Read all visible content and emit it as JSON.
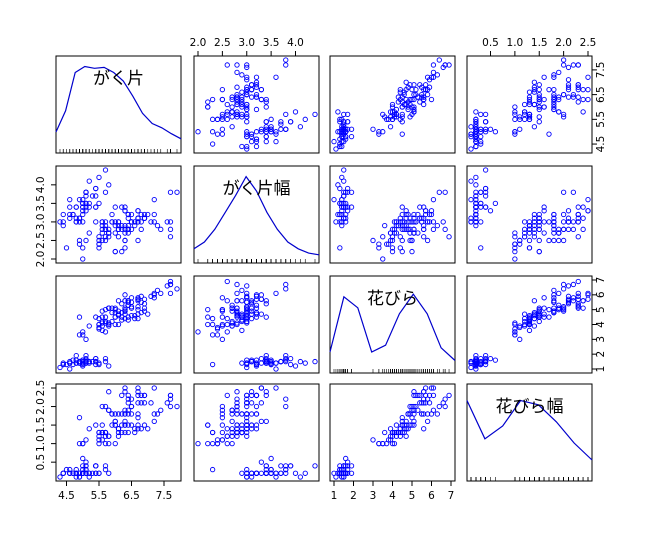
{
  "chart_data": {
    "type": "scatter",
    "variables": [
      "がく片",
      "がく片幅",
      "花びら",
      "花びら幅"
    ],
    "ranges": [
      [
        4.3,
        7.9
      ],
      [
        2.0,
        4.4
      ],
      [
        1.0,
        7.0
      ],
      [
        0.1,
        2.5
      ]
    ],
    "ticks": [
      [
        "4.5",
        "5.5",
        "6.5",
        "7.5"
      ],
      [
        "2.0",
        "2.5",
        "3.0",
        "3.5",
        "4.0"
      ],
      [
        "1",
        "2",
        "3",
        "4",
        "5",
        "6",
        "7"
      ],
      [
        "0.5",
        "1.0",
        "1.5",
        "2.0",
        "2.5"
      ]
    ],
    "density_curves": [
      [
        0.2,
        0.45,
        0.9,
        0.97,
        0.95,
        0.96,
        0.9,
        0.8,
        0.62,
        0.42,
        0.3,
        0.25,
        0.18,
        0.12
      ],
      [
        0.12,
        0.2,
        0.35,
        0.55,
        0.75,
        0.97,
        0.8,
        0.55,
        0.35,
        0.2,
        0.12,
        0.07,
        0.05
      ],
      [
        0.2,
        0.85,
        0.72,
        0.2,
        0.28,
        0.65,
        0.88,
        0.65,
        0.25,
        0.1
      ],
      [
        0.9,
        0.45,
        0.6,
        0.9,
        0.85,
        0.65,
        0.4,
        0.2
      ]
    ],
    "observations": [
      [
        5.1,
        3.5,
        1.4,
        0.2
      ],
      [
        4.9,
        3.0,
        1.4,
        0.2
      ],
      [
        4.7,
        3.2,
        1.3,
        0.2
      ],
      [
        4.6,
        3.1,
        1.5,
        0.2
      ],
      [
        5.0,
        3.6,
        1.4,
        0.2
      ],
      [
        5.4,
        3.9,
        1.7,
        0.4
      ],
      [
        4.6,
        3.4,
        1.4,
        0.3
      ],
      [
        5.0,
        3.4,
        1.5,
        0.2
      ],
      [
        4.4,
        2.9,
        1.4,
        0.2
      ],
      [
        4.9,
        3.1,
        1.5,
        0.1
      ],
      [
        5.4,
        3.7,
        1.5,
        0.2
      ],
      [
        4.8,
        3.4,
        1.6,
        0.2
      ],
      [
        4.8,
        3.0,
        1.4,
        0.1
      ],
      [
        4.3,
        3.0,
        1.1,
        0.1
      ],
      [
        5.8,
        4.0,
        1.2,
        0.2
      ],
      [
        5.7,
        4.4,
        1.5,
        0.4
      ],
      [
        5.4,
        3.9,
        1.3,
        0.4
      ],
      [
        5.1,
        3.5,
        1.4,
        0.3
      ],
      [
        5.7,
        3.8,
        1.7,
        0.3
      ],
      [
        5.1,
        3.8,
        1.5,
        0.3
      ],
      [
        5.4,
        3.4,
        1.7,
        0.2
      ],
      [
        5.1,
        3.7,
        1.5,
        0.4
      ],
      [
        4.6,
        3.6,
        1.0,
        0.2
      ],
      [
        5.1,
        3.3,
        1.7,
        0.5
      ],
      [
        4.8,
        3.4,
        1.9,
        0.2
      ],
      [
        5.0,
        3.0,
        1.6,
        0.2
      ],
      [
        5.0,
        3.4,
        1.6,
        0.4
      ],
      [
        5.2,
        3.5,
        1.5,
        0.2
      ],
      [
        5.2,
        3.4,
        1.4,
        0.2
      ],
      [
        4.7,
        3.2,
        1.6,
        0.2
      ],
      [
        4.8,
        3.1,
        1.6,
        0.2
      ],
      [
        5.4,
        3.4,
        1.5,
        0.4
      ],
      [
        5.2,
        4.1,
        1.5,
        0.1
      ],
      [
        5.5,
        4.2,
        1.4,
        0.2
      ],
      [
        4.9,
        3.1,
        1.5,
        0.2
      ],
      [
        5.0,
        3.2,
        1.2,
        0.2
      ],
      [
        5.5,
        3.5,
        1.3,
        0.2
      ],
      [
        4.9,
        3.6,
        1.4,
        0.1
      ],
      [
        4.4,
        3.0,
        1.3,
        0.2
      ],
      [
        5.1,
        3.4,
        1.5,
        0.2
      ],
      [
        5.0,
        3.5,
        1.3,
        0.3
      ],
      [
        4.5,
        2.3,
        1.3,
        0.3
      ],
      [
        4.4,
        3.2,
        1.3,
        0.2
      ],
      [
        5.0,
        3.5,
        1.6,
        0.6
      ],
      [
        5.1,
        3.8,
        1.9,
        0.4
      ],
      [
        4.8,
        3.0,
        1.4,
        0.3
      ],
      [
        5.1,
        3.8,
        1.6,
        0.2
      ],
      [
        4.6,
        3.2,
        1.4,
        0.2
      ],
      [
        5.3,
        3.7,
        1.5,
        0.2
      ],
      [
        5.0,
        3.3,
        1.4,
        0.2
      ],
      [
        7.0,
        3.2,
        4.7,
        1.4
      ],
      [
        6.4,
        3.2,
        4.5,
        1.5
      ],
      [
        6.9,
        3.1,
        4.9,
        1.5
      ],
      [
        5.5,
        2.3,
        4.0,
        1.3
      ],
      [
        6.5,
        2.8,
        4.6,
        1.5
      ],
      [
        5.7,
        2.8,
        4.5,
        1.3
      ],
      [
        6.3,
        3.3,
        4.7,
        1.6
      ],
      [
        4.9,
        2.4,
        3.3,
        1.0
      ],
      [
        6.6,
        2.9,
        4.6,
        1.3
      ],
      [
        5.2,
        2.7,
        3.9,
        1.4
      ],
      [
        5.0,
        2.0,
        3.5,
        1.0
      ],
      [
        5.9,
        3.0,
        4.2,
        1.5
      ],
      [
        6.0,
        2.2,
        4.0,
        1.0
      ],
      [
        6.1,
        2.9,
        4.7,
        1.4
      ],
      [
        5.6,
        2.9,
        3.6,
        1.3
      ],
      [
        6.7,
        3.1,
        4.4,
        1.4
      ],
      [
        5.6,
        3.0,
        4.5,
        1.5
      ],
      [
        5.8,
        2.7,
        4.1,
        1.0
      ],
      [
        6.2,
        2.2,
        4.5,
        1.5
      ],
      [
        5.6,
        2.5,
        3.9,
        1.1
      ],
      [
        5.9,
        3.2,
        4.8,
        1.8
      ],
      [
        6.1,
        2.8,
        4.0,
        1.3
      ],
      [
        6.3,
        2.5,
        4.9,
        1.5
      ],
      [
        6.1,
        2.8,
        4.7,
        1.2
      ],
      [
        6.4,
        2.9,
        4.3,
        1.3
      ],
      [
        6.6,
        3.0,
        4.4,
        1.4
      ],
      [
        6.8,
        2.8,
        4.8,
        1.4
      ],
      [
        6.7,
        3.0,
        5.0,
        1.7
      ],
      [
        6.0,
        2.9,
        4.5,
        1.5
      ],
      [
        5.7,
        2.6,
        3.5,
        1.0
      ],
      [
        5.5,
        2.4,
        3.8,
        1.1
      ],
      [
        5.5,
        2.4,
        3.7,
        1.0
      ],
      [
        5.8,
        2.7,
        3.9,
        1.2
      ],
      [
        6.0,
        2.7,
        5.1,
        1.6
      ],
      [
        5.4,
        3.0,
        4.5,
        1.5
      ],
      [
        6.0,
        3.4,
        4.5,
        1.6
      ],
      [
        6.7,
        3.1,
        4.7,
        1.5
      ],
      [
        6.3,
        2.3,
        4.4,
        1.3
      ],
      [
        5.6,
        3.0,
        4.1,
        1.3
      ],
      [
        5.5,
        2.5,
        4.0,
        1.3
      ],
      [
        5.5,
        2.6,
        4.4,
        1.2
      ],
      [
        6.1,
        3.0,
        4.6,
        1.4
      ],
      [
        5.8,
        2.6,
        4.0,
        1.2
      ],
      [
        5.0,
        2.3,
        3.3,
        1.0
      ],
      [
        5.6,
        2.7,
        4.2,
        1.3
      ],
      [
        5.7,
        3.0,
        4.2,
        1.2
      ],
      [
        5.7,
        2.9,
        4.2,
        1.3
      ],
      [
        6.2,
        2.9,
        4.3,
        1.3
      ],
      [
        5.1,
        2.5,
        3.0,
        1.1
      ],
      [
        5.7,
        2.8,
        4.1,
        1.3
      ],
      [
        6.3,
        3.3,
        6.0,
        2.5
      ],
      [
        5.8,
        2.7,
        5.1,
        1.9
      ],
      [
        7.1,
        3.0,
        5.9,
        2.1
      ],
      [
        6.3,
        2.9,
        5.6,
        1.8
      ],
      [
        6.5,
        3.0,
        5.8,
        2.2
      ],
      [
        7.6,
        3.0,
        6.6,
        2.1
      ],
      [
        4.9,
        2.5,
        4.5,
        1.7
      ],
      [
        7.3,
        2.9,
        6.3,
        1.8
      ],
      [
        6.7,
        2.5,
        5.8,
        1.8
      ],
      [
        7.2,
        3.6,
        6.1,
        2.5
      ],
      [
        6.5,
        3.2,
        5.1,
        2.0
      ],
      [
        6.4,
        2.7,
        5.3,
        1.9
      ],
      [
        6.8,
        3.0,
        5.5,
        2.1
      ],
      [
        5.7,
        2.5,
        5.0,
        2.0
      ],
      [
        5.8,
        2.8,
        5.1,
        2.4
      ],
      [
        6.4,
        3.2,
        5.3,
        2.3
      ],
      [
        6.5,
        3.0,
        5.5,
        1.8
      ],
      [
        7.7,
        3.8,
        6.7,
        2.2
      ],
      [
        7.7,
        2.6,
        6.9,
        2.3
      ],
      [
        6.0,
        2.2,
        5.0,
        1.5
      ],
      [
        6.9,
        3.2,
        5.7,
        2.3
      ],
      [
        5.6,
        2.8,
        4.9,
        2.0
      ],
      [
        7.7,
        2.8,
        6.7,
        2.0
      ],
      [
        6.3,
        2.7,
        4.9,
        1.8
      ],
      [
        6.7,
        3.3,
        5.7,
        2.1
      ],
      [
        7.2,
        3.2,
        6.0,
        1.8
      ],
      [
        6.2,
        2.8,
        4.8,
        1.8
      ],
      [
        6.1,
        3.0,
        4.9,
        1.8
      ],
      [
        6.4,
        2.8,
        5.6,
        2.1
      ],
      [
        7.2,
        3.0,
        5.8,
        1.6
      ],
      [
        7.4,
        2.8,
        6.1,
        1.9
      ],
      [
        7.9,
        3.8,
        6.4,
        2.0
      ],
      [
        6.4,
        2.8,
        5.6,
        2.2
      ],
      [
        6.3,
        2.8,
        5.1,
        1.5
      ],
      [
        6.1,
        2.6,
        5.6,
        1.4
      ],
      [
        7.7,
        3.0,
        6.1,
        2.3
      ],
      [
        6.3,
        3.4,
        5.6,
        2.4
      ],
      [
        6.4,
        3.1,
        5.5,
        1.8
      ],
      [
        6.0,
        3.0,
        4.8,
        1.8
      ],
      [
        6.9,
        3.1,
        5.4,
        2.1
      ],
      [
        6.7,
        3.1,
        5.6,
        2.4
      ],
      [
        6.9,
        3.1,
        5.1,
        2.3
      ],
      [
        5.8,
        2.7,
        5.1,
        1.9
      ],
      [
        6.8,
        3.2,
        5.9,
        2.3
      ],
      [
        6.7,
        3.3,
        5.7,
        2.5
      ],
      [
        6.7,
        3.0,
        5.2,
        2.3
      ],
      [
        6.3,
        2.5,
        5.0,
        1.9
      ],
      [
        6.5,
        3.0,
        5.2,
        2.0
      ],
      [
        6.2,
        3.4,
        5.4,
        2.3
      ],
      [
        5.9,
        3.0,
        5.1,
        1.8
      ]
    ],
    "colors": {
      "points": "#0000ff",
      "density": "#0000cc",
      "frame": "#000000",
      "text": "#000000"
    },
    "grid": false,
    "legend": "none"
  }
}
